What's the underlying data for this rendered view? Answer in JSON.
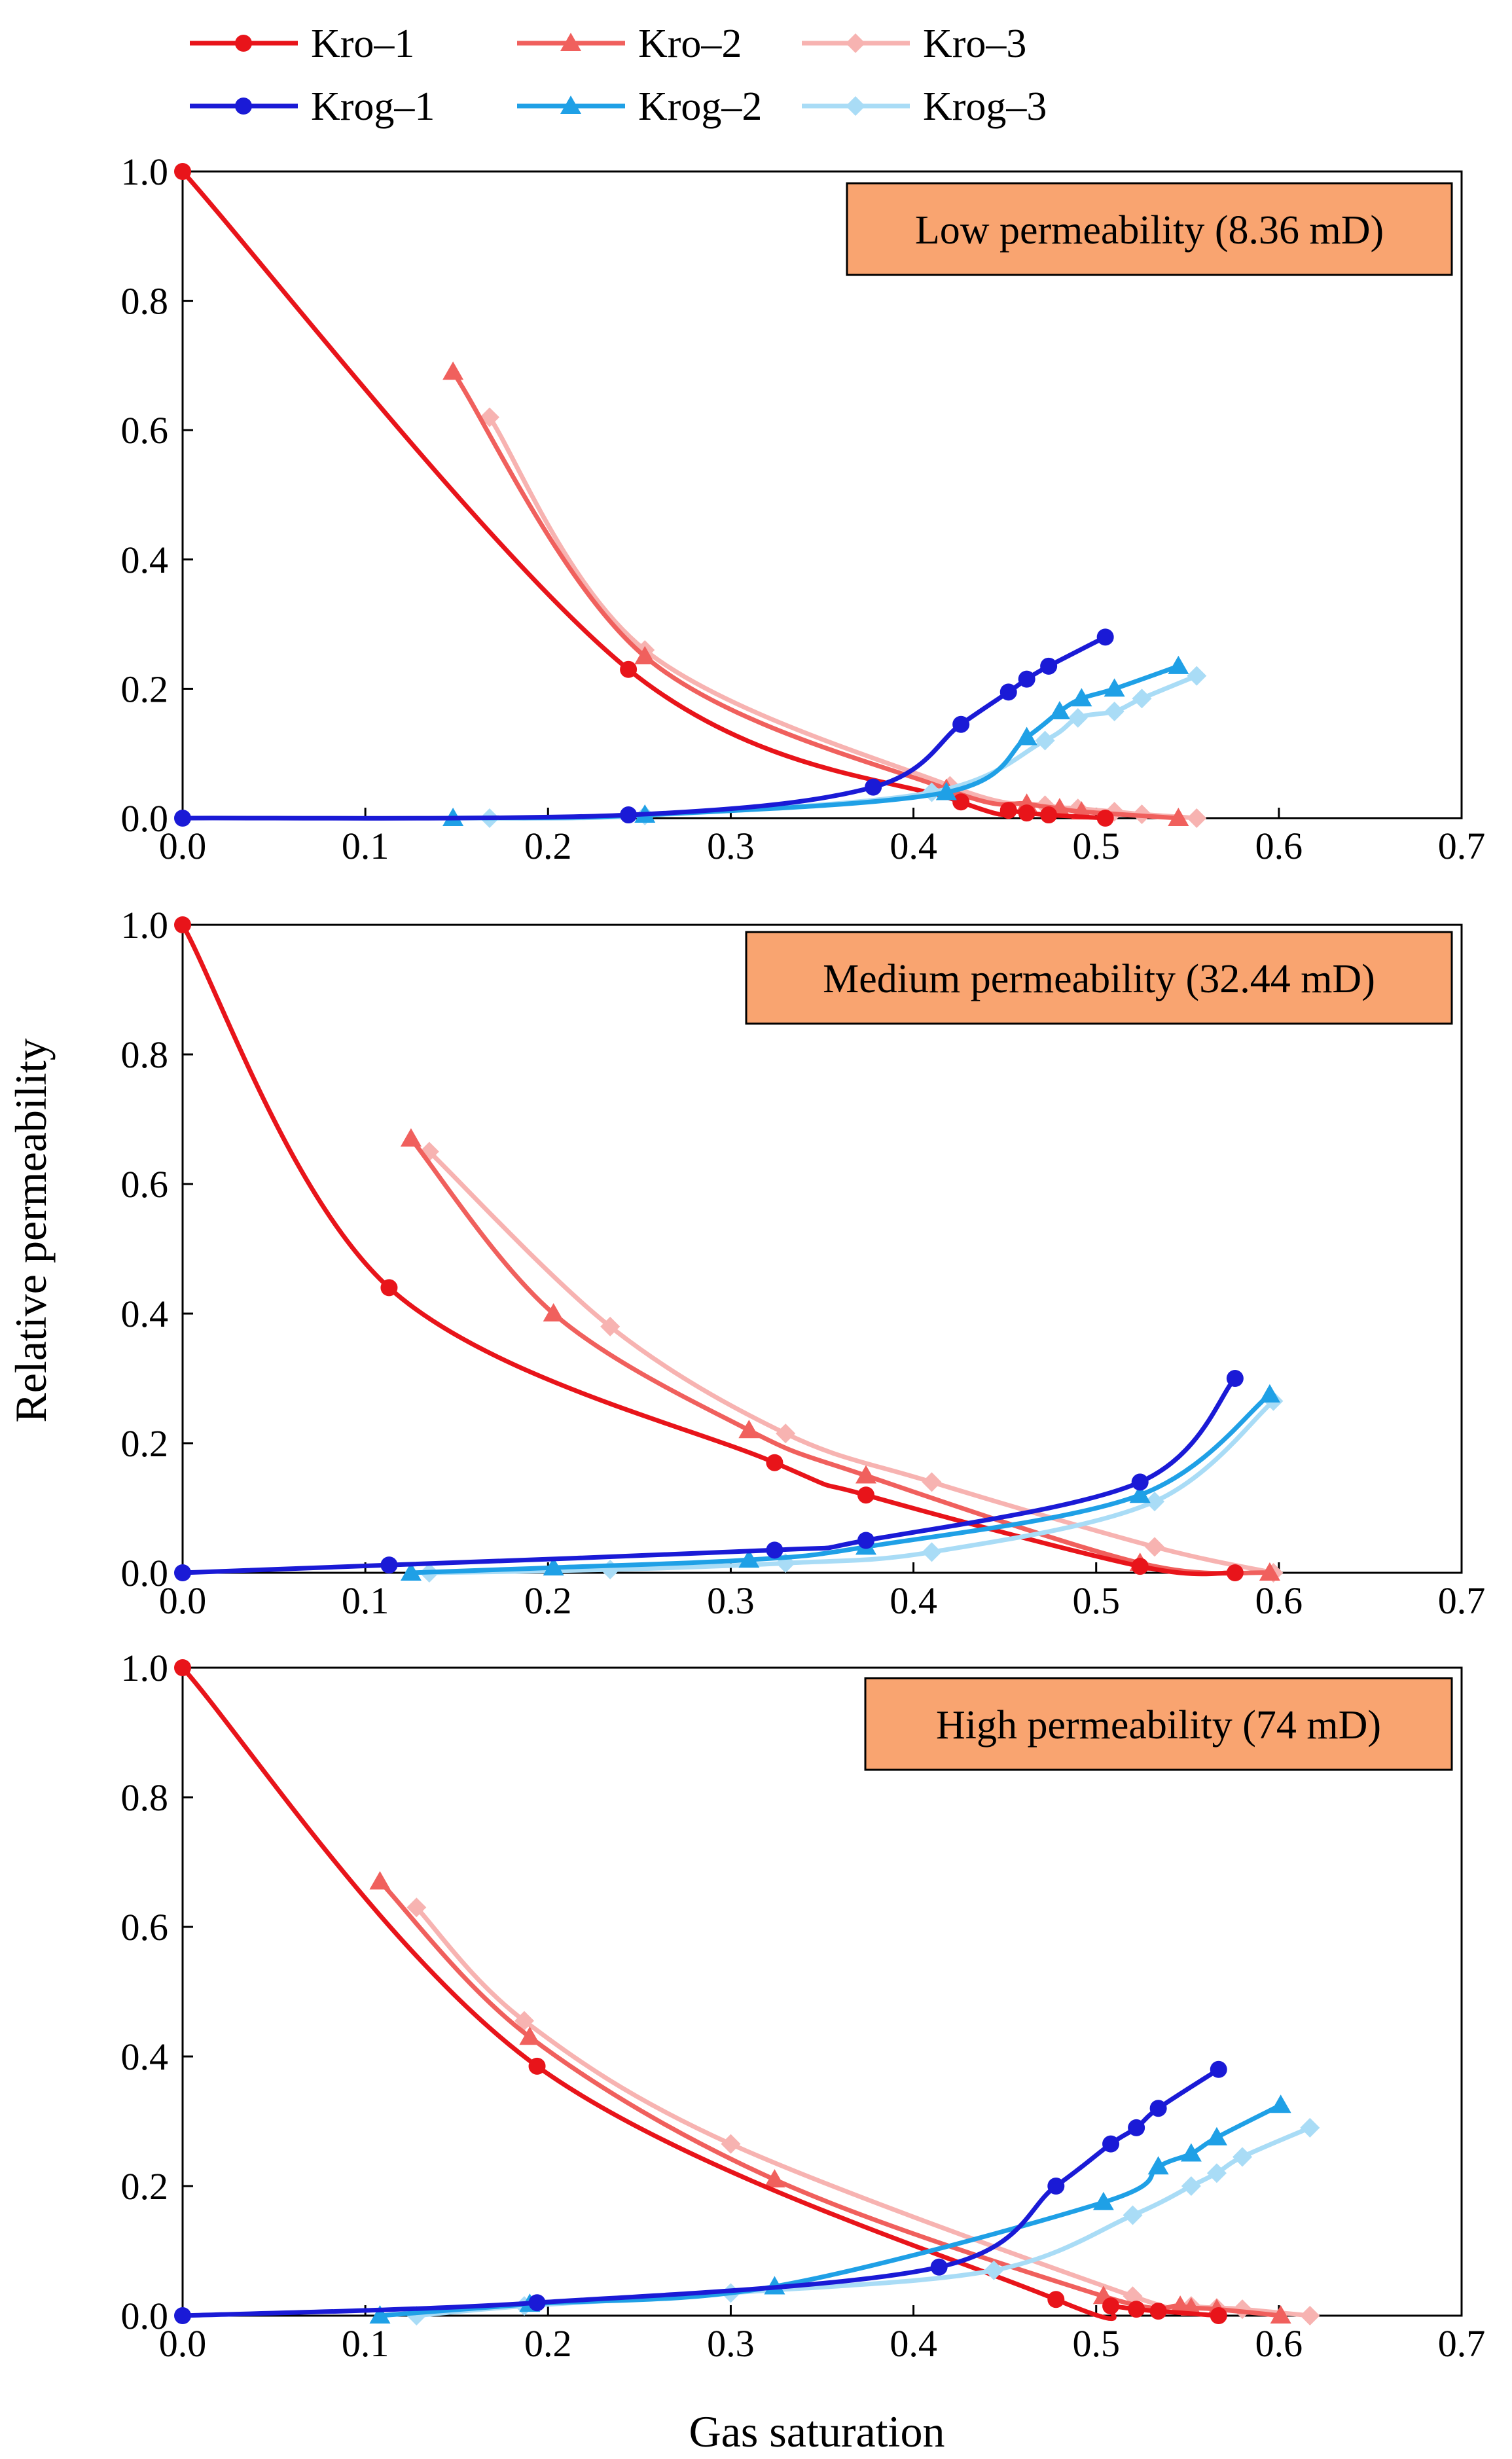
{
  "colors": {
    "Kro-1": "#e8141a",
    "Kro-2": "#f0605d",
    "Kro-3": "#f7b3b1",
    "Krog-1": "#1a1ad6",
    "Krog-2": "#1fa0e6",
    "Krog-3": "#a9dcf6",
    "annotation_fill": "#f9a470"
  },
  "chart_data": {
    "type": "line",
    "xlabel": "Gas saturation",
    "ylabel": "Relative permeability",
    "xlim": [
      0,
      0.7
    ],
    "ylim": [
      0,
      1.0
    ],
    "x_ticks": [
      "0.0",
      "0.1",
      "0.2",
      "0.3",
      "0.4",
      "0.5",
      "0.6",
      "0.7"
    ],
    "y_ticks": [
      "0.0",
      "0.2",
      "0.4",
      "0.6",
      "0.8",
      "1.0"
    ],
    "legend": [
      {
        "name": "Kro–1",
        "key": "Kro-1",
        "marker": "circle"
      },
      {
        "name": "Kro–2",
        "key": "Kro-2",
        "marker": "triangle"
      },
      {
        "name": "Kro–3",
        "key": "Kro-3",
        "marker": "diamond"
      },
      {
        "name": "Krog–1",
        "key": "Krog-1",
        "marker": "circle"
      },
      {
        "name": "Krog–2",
        "key": "Krog-2",
        "marker": "triangle"
      },
      {
        "name": "Krog–3",
        "key": "Krog-3",
        "marker": "diamond"
      }
    ],
    "panels": [
      {
        "title": "Low permeability (8.36 mD)",
        "series": [
          {
            "key": "Kro-1",
            "marker": "circle",
            "x": [
              0,
              0.244,
              0.426,
              0.452,
              0.462,
              0.474,
              0.505
            ],
            "y": [
              1.0,
              0.23,
              0.025,
              0.012,
              0.008,
              0.005,
              0.0
            ]
          },
          {
            "key": "Kro-2",
            "marker": "triangle",
            "x": [
              0.148,
              0.253,
              0.418,
              0.462,
              0.48,
              0.492,
              0.545
            ],
            "y": [
              0.69,
              0.25,
              0.045,
              0.022,
              0.015,
              0.01,
              0.0
            ]
          },
          {
            "key": "Kro-3",
            "marker": "diamond",
            "x": [
              0.168,
              0.253,
              0.42,
              0.472,
              0.49,
              0.51,
              0.525,
              0.555
            ],
            "y": [
              0.62,
              0.26,
              0.05,
              0.02,
              0.015,
              0.01,
              0.006,
              0.0
            ]
          },
          {
            "key": "Krog-1",
            "marker": "circle",
            "x": [
              0,
              0.244,
              0.378,
              0.426,
              0.452,
              0.462,
              0.474,
              0.505
            ],
            "y": [
              0.0,
              0.005,
              0.048,
              0.145,
              0.195,
              0.215,
              0.235,
              0.28
            ]
          },
          {
            "key": "Krog-2",
            "marker": "triangle",
            "x": [
              0.148,
              0.253,
              0.418,
              0.462,
              0.48,
              0.492,
              0.51,
              0.545
            ],
            "y": [
              0.0,
              0.005,
              0.04,
              0.125,
              0.165,
              0.185,
              0.2,
              0.235
            ]
          },
          {
            "key": "Krog-3",
            "marker": "diamond",
            "x": [
              0.168,
              0.253,
              0.41,
              0.472,
              0.49,
              0.51,
              0.525,
              0.555
            ],
            "y": [
              0.0,
              0.004,
              0.04,
              0.12,
              0.155,
              0.165,
              0.185,
              0.22
            ]
          }
        ]
      },
      {
        "title": "Medium permeability (32.44 mD)",
        "series": [
          {
            "key": "Kro-1",
            "marker": "circle",
            "x": [
              0,
              0.113,
              0.324,
              0.374,
              0.524,
              0.576
            ],
            "y": [
              1.0,
              0.44,
              0.17,
              0.12,
              0.01,
              0.0
            ]
          },
          {
            "key": "Kro-2",
            "marker": "triangle",
            "x": [
              0.125,
              0.203,
              0.31,
              0.374,
              0.524,
              0.595
            ],
            "y": [
              0.67,
              0.4,
              0.22,
              0.15,
              0.015,
              0.0
            ]
          },
          {
            "key": "Kro-3",
            "marker": "diamond",
            "x": [
              0.135,
              0.234,
              0.33,
              0.41,
              0.532,
              0.597
            ],
            "y": [
              0.65,
              0.38,
              0.215,
              0.14,
              0.04,
              0.0
            ]
          },
          {
            "key": "Krog-1",
            "marker": "circle",
            "x": [
              0,
              0.113,
              0.324,
              0.374,
              0.524,
              0.576
            ],
            "y": [
              0.0,
              0.012,
              0.035,
              0.05,
              0.14,
              0.3
            ]
          },
          {
            "key": "Krog-2",
            "marker": "triangle",
            "x": [
              0.125,
              0.203,
              0.31,
              0.374,
              0.524,
              0.595
            ],
            "y": [
              0.0,
              0.008,
              0.02,
              0.04,
              0.12,
              0.275
            ]
          },
          {
            "key": "Krog-3",
            "marker": "diamond",
            "x": [
              0.135,
              0.234,
              0.33,
              0.41,
              0.532,
              0.597
            ],
            "y": [
              0.0,
              0.005,
              0.015,
              0.032,
              0.11,
              0.265
            ]
          }
        ]
      },
      {
        "title": "High permeability (74 mD)",
        "series": [
          {
            "key": "Kro-1",
            "marker": "circle",
            "x": [
              0,
              0.194,
              0.478,
              0.508,
              0.522,
              0.534,
              0.567
            ],
            "y": [
              1.0,
              0.385,
              0.025,
              0.015,
              0.01,
              0.007,
              0.0
            ]
          },
          {
            "key": "Kro-2",
            "marker": "triangle",
            "x": [
              0.108,
              0.19,
              0.324,
              0.504,
              0.546,
              0.552,
              0.566,
              0.601
            ],
            "y": [
              0.67,
              0.43,
              0.21,
              0.03,
              0.015,
              0.012,
              0.01,
              0.0
            ]
          },
          {
            "key": "Kro-3",
            "marker": "diamond",
            "x": [
              0.128,
              0.187,
              0.3,
              0.52,
              0.552,
              0.566,
              0.58,
              0.617
            ],
            "y": [
              0.63,
              0.455,
              0.265,
              0.03,
              0.015,
              0.012,
              0.01,
              0.0
            ]
          },
          {
            "key": "Krog-1",
            "marker": "circle",
            "x": [
              0,
              0.194,
              0.414,
              0.478,
              0.508,
              0.522,
              0.534,
              0.567
            ],
            "y": [
              0.0,
              0.02,
              0.075,
              0.2,
              0.265,
              0.29,
              0.32,
              0.38
            ]
          },
          {
            "key": "Krog-2",
            "marker": "triangle",
            "x": [
              0.108,
              0.19,
              0.324,
              0.504,
              0.534,
              0.552,
              0.566,
              0.601
            ],
            "y": [
              0.0,
              0.018,
              0.045,
              0.175,
              0.23,
              0.25,
              0.275,
              0.325
            ]
          },
          {
            "key": "Krog-3",
            "marker": "diamond",
            "x": [
              0.128,
              0.187,
              0.3,
              0.444,
              0.52,
              0.552,
              0.566,
              0.58,
              0.617
            ],
            "y": [
              0.0,
              0.015,
              0.035,
              0.07,
              0.155,
              0.2,
              0.22,
              0.245,
              0.29
            ]
          }
        ]
      }
    ]
  }
}
